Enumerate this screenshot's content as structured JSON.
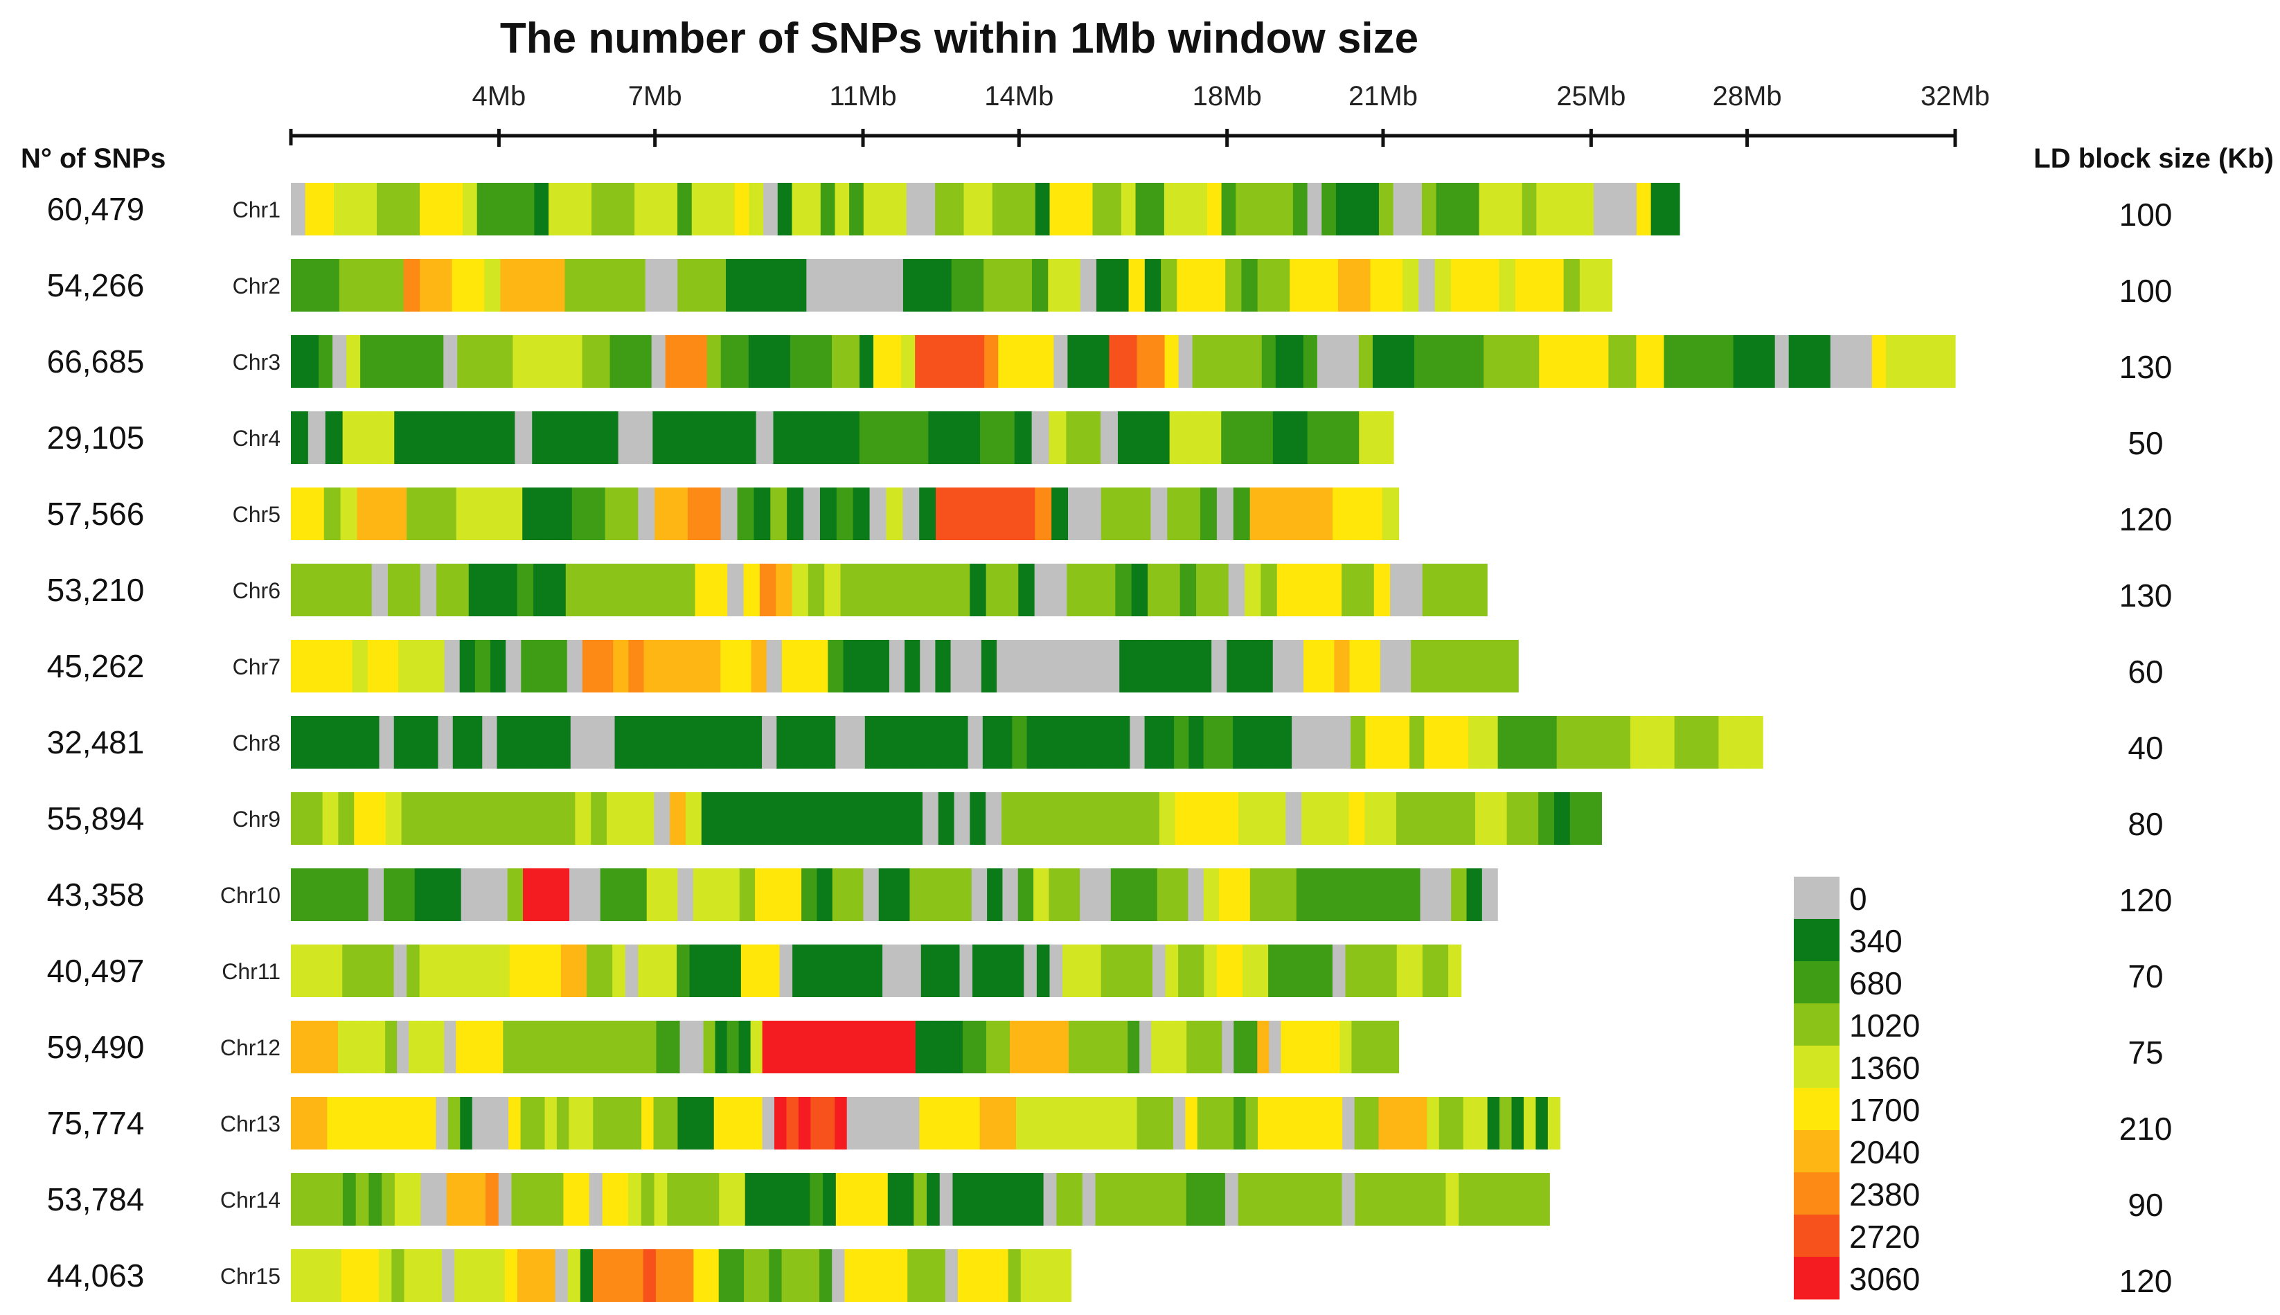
{
  "chart_data": {
    "type": "heatmap",
    "title": "The number of SNPs within 1Mb window size",
    "x_axis": {
      "unit": "Mb",
      "ticks": [
        4,
        7,
        11,
        14,
        18,
        21,
        25,
        28,
        32
      ],
      "tick_labels": [
        "4Mb",
        "7Mb",
        "11Mb",
        "14Mb",
        "18Mb",
        "21Mb",
        "25Mb",
        "28Mb",
        "32Mb"
      ],
      "range_mb": [
        0,
        32
      ]
    },
    "left_header": "N° of SNPs",
    "right_header": "LD block size (Kb)",
    "legend": {
      "values": [
        "0",
        "340",
        "680",
        "1020",
        "1360",
        "1700",
        "2040",
        "2380",
        "2720",
        "3060"
      ],
      "colors": [
        "#c0c0c0",
        "#0b7a18",
        "#3e9d14",
        "#8cc318",
        "#d2e621",
        "#ffe70a",
        "#fdb613",
        "#fd8a14",
        "#f7521b",
        "#f41c20"
      ]
    },
    "chromosomes": [
      {
        "name": "Chr1",
        "snps": "60,479",
        "ld_kb": "100",
        "length_mb": 26.7,
        "pattern": "0554443335554222214443334442444540144242444003344333155533422444523333202111300322244434444000511"
      },
      {
        "name": "Chr2",
        "snps": "54,266",
        "ld_kb": "100",
        "length_mb": 25.4,
        "pattern": "2223333766554666633333003331111100000011122333244011513555323355566554045554555344"
      },
      {
        "name": "Chr3",
        "snps": "66,685",
        "ld_kb": "130",
        "length_mb": 32.0,
        "pattern": "112042222220333344444332220777322111222331554888887555501118877503333321120003111222223333555553355222221110111000544444"
      },
      {
        "name": "Chr4",
        "snps": "29,105",
        "ld_kb": "50",
        "length_mb": 21.2,
        "pattern": "1014441111111011111001111110111112222111221043301114442221122244"
      },
      {
        "name": "Chr5",
        "snps": "57,566",
        "ld_kb": "120",
        "length_mb": 21.3,
        "pattern": "5534666333444411122330667702131012104018888887100333033202666665554"
      },
      {
        "name": "Chr6",
        "snps": "53,210",
        "ld_kb": "130",
        "length_mb": 23.0,
        "pattern": "33333033033111211333333335505764343333333313310033321332330435555335003333"
      },
      {
        "name": "Chr7",
        "snps": "45,262",
        "ld_kb": "60",
        "length_mb": 23.6,
        "pattern": "55554554440121022207767666665560555211101010010000000011111101110055655003333333"
      },
      {
        "name": "Chr8",
        "snps": "32,481",
        "ld_kb": "40",
        "length_mb": 28.3,
        "pattern": "1111110111011011111000111111111101111001111111011211111110112122111100003555355544222233333444333444"
      },
      {
        "name": "Chr9",
        "snps": "55,894",
        "ld_kb": "80",
        "length_mb": 25.2,
        "pattern": "33435543333333333343444064111111111111110101033333333334555544404445443333344332122"
      },
      {
        "name": "Chr10",
        "snps": "43,358",
        "ld_kb": "120",
        "length_mb": 23.2,
        "pattern": "222220221110003999002224404443555213301133330102433002223304553332222222200310"
      },
      {
        "name": "Chr11",
        "snps": "40,497",
        "ld_kb": "70",
        "length_mb": 22.5,
        "pattern": "4444333303444444455556633404442111155501111111000111011110104443333043345544222220333344334"
      },
      {
        "name": "Chr12",
        "snps": "59,490",
        "ld_kb": "75",
        "length_mb": 21.3,
        "pattern": "6666444430444055553333333333333220031214999999999999911112233666663333320444333022605555543333"
      },
      {
        "name": "Chr13",
        "snps": "75,774",
        "ld_kb": "210",
        "length_mb": 24.4,
        "pattern": "666555555555031000533434433335331115555098988900000055555666444444444433305333235555555033666643344131414"
      },
      {
        "name": "Chr14",
        "snps": "53,784",
        "ld_kb": "90",
        "length_mb": 24.2,
        "pattern": "3333232344006667033335505543433334411111215555113101111111033033333332220333333330333333343333333"
      },
      {
        "name": "Chr15",
        "snps": "44,063",
        "ld_kb": "120",
        "length_mb": 15.0,
        "pattern": "44445554344404444566604177778777552233233320555553330555534444"
      }
    ]
  }
}
